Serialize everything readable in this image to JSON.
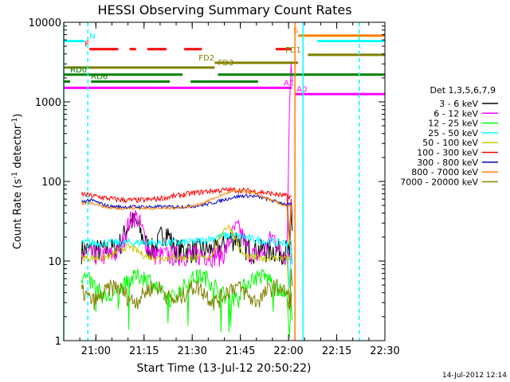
{
  "chart_data": {
    "type": "line",
    "title": "HESSI Observing Summary Count Rates",
    "xlabel": "Start Time (13-Jul-12 20:50:22)",
    "ylabel_main": "Count Rate (s",
    "ylabel_exp1": "-1",
    "ylabel_mid": " detector",
    "ylabel_exp2": "-1",
    "ylabel_end": ")",
    "yscale": "log",
    "ylim": [
      1,
      10000
    ],
    "xlim_min": [
      0,
      100
    ],
    "x_ticks": [
      {
        "min": 10,
        "label": "21:00"
      },
      {
        "min": 25,
        "label": "21:15"
      },
      {
        "min": 40,
        "label": "21:30"
      },
      {
        "min": 55,
        "label": "21:45"
      },
      {
        "min": 70,
        "label": "22:00"
      },
      {
        "min": 85,
        "label": "22:15"
      },
      {
        "min": 100,
        "label": "22:30"
      }
    ],
    "y_ticks": [
      {
        "v": 1,
        "label": "1"
      },
      {
        "v": 10,
        "label": "10"
      },
      {
        "v": 100,
        "label": "100"
      },
      {
        "v": 1000,
        "label": "1000"
      },
      {
        "v": 10000,
        "label": "10000"
      }
    ],
    "legend_title": "Det 1,3,5,6,7,9",
    "series": [
      {
        "name": "3 - 6 keV",
        "color": "#000000"
      },
      {
        "name": "6 - 12 keV",
        "color": "#ff00ff"
      },
      {
        "name": "12 - 25 keV",
        "color": "#00ff00"
      },
      {
        "name": "25 - 50 keV",
        "color": "#00ffff"
      },
      {
        "name": "50 - 100 keV",
        "color": "#c8c800"
      },
      {
        "name": "100 - 300 keV",
        "color": "#ff0000"
      },
      {
        "name": "300 - 800 keV",
        "color": "#0000c8"
      },
      {
        "name": "800 - 7000 keV",
        "color": "#ff8000"
      },
      {
        "name": "7000 - 20000 keV",
        "color": "#808000"
      }
    ],
    "flag_bars": [
      {
        "label": "N",
        "color": "#00ffff",
        "y": 5800,
        "segments": [
          [
            -3.5,
            6.5
          ],
          [
            79,
            100
          ]
        ],
        "label_at": 8,
        "label_color": "#00ffff"
      },
      {
        "label": "S",
        "color": "#ff8000",
        "y": 6800,
        "segments": [
          [
            73,
            100
          ]
        ],
        "label_at": 71.5,
        "label_color": "#ff8000"
      },
      {
        "label": "F",
        "color": "#ff0000",
        "y": 4600,
        "segments": [
          [
            8,
            17
          ],
          [
            20.5,
            22.5
          ],
          [
            26,
            32
          ],
          [
            37.5,
            43
          ],
          [
            66,
            71
          ]
        ],
        "label_at": 6.5,
        "label_color": "#ff0000"
      },
      {
        "label": "FD1",
        "color": "#808000",
        "y": 3900,
        "segments": [
          [
            76,
            100
          ]
        ],
        "label_at": 69,
        "label_color": "#808000"
      },
      {
        "label": "FD2",
        "color": "#808000",
        "y": 3100,
        "segments": [
          [
            47,
            73
          ]
        ],
        "label_at": 42,
        "label_color": "#808000"
      },
      {
        "label": "FD3",
        "color": "#808000",
        "y": 2700,
        "segments": [
          [
            -3.5,
            47
          ]
        ],
        "label_at": 48,
        "label_color": "#808000"
      },
      {
        "label": "RD0",
        "color": "#008000",
        "y": 2200,
        "segments": [
          [
            -3.5,
            37
          ],
          [
            48,
            100
          ]
        ],
        "label_at": 2,
        "label_color": "#008000"
      },
      {
        "label": "RD6",
        "color": "#008000",
        "y": 1800,
        "segments": [
          [
            -3.5,
            2
          ],
          [
            8.5,
            33
          ],
          [
            39.5,
            60.5
          ]
        ],
        "label_at": 8.5,
        "label_color": "#008000"
      },
      {
        "label": "A0",
        "color": "#ff00ff",
        "y": 1250,
        "segments": [
          [
            72,
            100
          ]
        ],
        "label_at": 72.5,
        "label_color": "#ff00ff"
      },
      {
        "label": "A1",
        "color": "#ff00ff",
        "y": 1500,
        "segments": [
          [
            -3.5,
            71
          ]
        ],
        "label_at": 68.5,
        "label_color": "#ff00ff"
      }
    ],
    "vertical_lines": [
      {
        "min": -3.5,
        "color": "#00ffff",
        "style": "solid"
      },
      {
        "min": 7.5,
        "color": "#00ffff",
        "style": "dashed"
      },
      {
        "min": 72,
        "color": "#ff8000",
        "style": "solid"
      },
      {
        "min": 74.5,
        "color": "#00ffff",
        "style": "solid"
      },
      {
        "min": 92,
        "color": "#00ffff",
        "style": "dashed"
      }
    ],
    "footer_date": "14-Jul-2012 12:14"
  }
}
